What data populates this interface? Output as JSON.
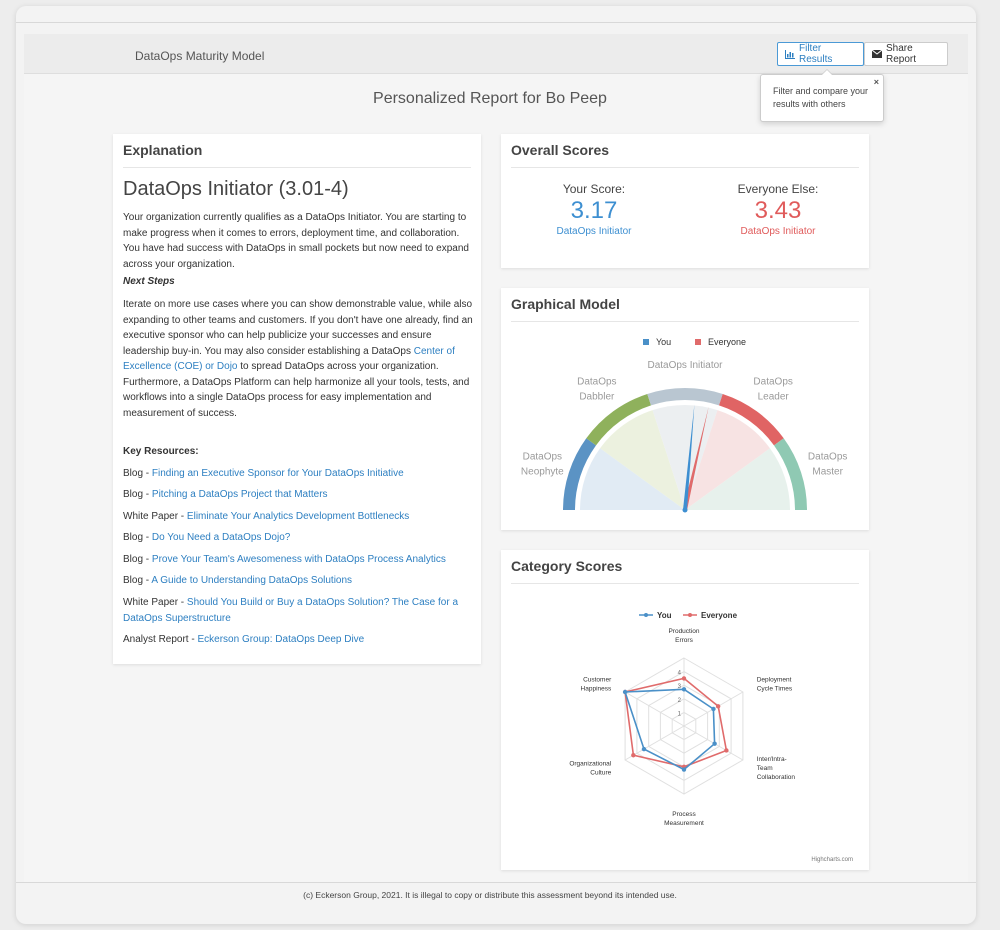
{
  "app": {
    "brand": "DataOps Maturity Model"
  },
  "toolbar": {
    "filter_label": "Filter Results",
    "share_label": "Share Report"
  },
  "tooltip": {
    "text": "Filter and compare your results with others",
    "close": "×"
  },
  "page": {
    "title": "Personalized Report for Bo Peep"
  },
  "explanation": {
    "heading": "Explanation",
    "level_title": "DataOps Initiator (3.01-4)",
    "paragraph1": "Your organization currently qualifies as a DataOps Initiator. You are starting to make progress when it comes to errors, deployment time, and collaboration. You have had success with DataOps in small pockets but now need to expand across your organization.",
    "next_steps_label": "Next Steps",
    "paragraph2_a": "Iterate on more use cases where you can show demonstrable value, while also expanding to other teams and customers. If you don't have one already, find an executive sponsor who can help publicize your successes and ensure leadership buy-in. You may also consider establishing a DataOps ",
    "paragraph2_link": "Center of Excellence (COE) or Dojo",
    "paragraph2_b": " to spread DataOps across your organization. Furthermore, a DataOps Platform can help harmonize all your tools, tests, and workflows into a single DataOps process for easy implementation and measurement of success.",
    "key_resources_label": "Key Resources:",
    "resources": [
      {
        "type": "Blog - ",
        "title": "Finding an Executive Sponsor for Your DataOps Initiative"
      },
      {
        "type": "Blog - ",
        "title": "Pitching a DataOps Project that Matters"
      },
      {
        "type": "White Paper - ",
        "title": "Eliminate Your Analytics Development Bottlenecks"
      },
      {
        "type": "Blog - ",
        "title": "Do You Need a DataOps Dojo?"
      },
      {
        "type": "Blog - ",
        "title": "Prove Your Team's Awesomeness with DataOps Process Analytics"
      },
      {
        "type": "Blog - ",
        "title": "A Guide to Understanding DataOps Solutions"
      },
      {
        "type": "White Paper - ",
        "title": "Should You Build or Buy a DataOps Solution? The Case for a DataOps Superstructure"
      },
      {
        "type": "Analyst Report - ",
        "title": "Eckerson Group: DataOps Deep Dive"
      }
    ]
  },
  "overall": {
    "heading": "Overall Scores",
    "you": {
      "label": "Your Score:",
      "value": "3.17",
      "level": "DataOps Initiator",
      "color": "#3d8fd1"
    },
    "everyone": {
      "label": "Everyone Else:",
      "value": "3.43",
      "level": "DataOps Initiator",
      "color": "#e05b5b"
    }
  },
  "graphical": {
    "heading": "Graphical Model",
    "legend": [
      {
        "name": "You",
        "color": "#4a90c8"
      },
      {
        "name": "Everyone",
        "color": "#e06b6b"
      }
    ],
    "segments": [
      {
        "l1": "DataOps",
        "l2": "Neophyte",
        "color": "#5b93c4",
        "fill": "#dce8f2"
      },
      {
        "l1": "DataOps",
        "l2": "Dabbler",
        "color": "#8fb15c",
        "fill": "#e9eed9"
      },
      {
        "l1": "DataOps Initiator",
        "l2": "",
        "color": "#b9c6d1",
        "fill": "#e9ecef"
      },
      {
        "l1": "DataOps",
        "l2": "Leader",
        "color": "#e06464",
        "fill": "#f6dede"
      },
      {
        "l1": "DataOps",
        "l2": "Master",
        "color": "#8fc9b3",
        "fill": "#e3efe9"
      }
    ],
    "needle_you": 3.17,
    "needle_everyone": 3.43,
    "scale_min": 0,
    "scale_max": 6
  },
  "category": {
    "heading": "Category Scores",
    "credit": "Highcharts.com",
    "chart_data": {
      "type": "radar",
      "categories": [
        [
          "Production",
          "Errors"
        ],
        [
          "Deployment",
          "Cycle Times"
        ],
        [
          "Inter/Intra-",
          "Team",
          "Collaboration"
        ],
        [
          "Process",
          "Measurement"
        ],
        [
          "Organizational",
          "Culture"
        ],
        [
          "Customer",
          "Happiness"
        ]
      ],
      "ticks": [
        "1",
        "2",
        "3",
        "4"
      ],
      "ylim": [
        0,
        5
      ],
      "series": [
        {
          "name": "You",
          "color": "#4a90c8",
          "values": [
            2.7,
            2.5,
            2.6,
            3.2,
            3.4,
            5.0
          ]
        },
        {
          "name": "Everyone",
          "color": "#e06b6b",
          "values": [
            3.5,
            2.9,
            3.6,
            3.0,
            4.3,
            5.0
          ]
        }
      ]
    }
  },
  "footer": {
    "text": "(c) Eckerson Group, 2021. It is illegal to copy or distribute this assessment beyond its intended use."
  }
}
